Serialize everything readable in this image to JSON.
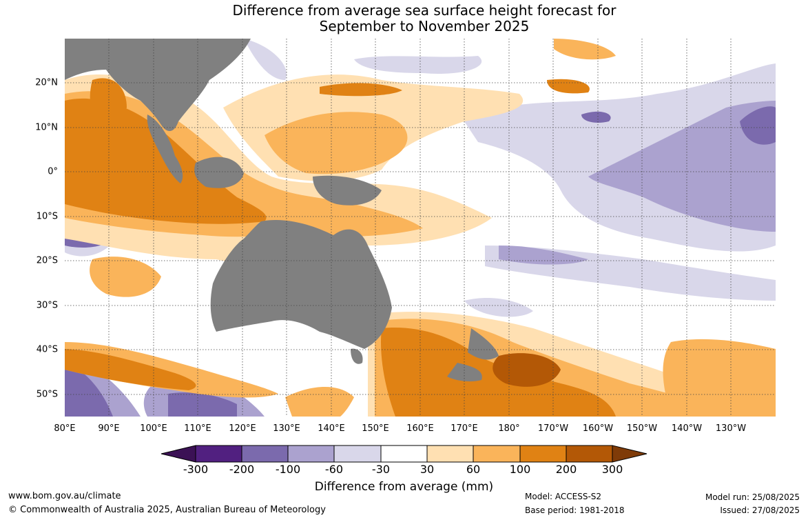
{
  "title": {
    "line1": "Difference from average sea surface height forecast for",
    "line2": "September to November 2025"
  },
  "axes": {
    "lat_labels": [
      "20°N",
      "10°N",
      "0°",
      "10°S",
      "20°S",
      "30°S",
      "40°S",
      "50°S"
    ],
    "lon_labels": [
      "80°E",
      "90°E",
      "100°E",
      "110°E",
      "120°E",
      "130°E",
      "140°E",
      "150°E",
      "160°E",
      "170°E",
      "180°",
      "170°W",
      "160°W",
      "150°W",
      "140°W",
      "130°W"
    ]
  },
  "colorbar": {
    "title": "Difference from average (mm)",
    "ticks": [
      "-300",
      "-200",
      "-100",
      "-60",
      "-30",
      "30",
      "60",
      "100",
      "200",
      "300"
    ],
    "colors": [
      "#3b1155",
      "#512080",
      "#7b6aad",
      "#aba2cf",
      "#d9d7ea",
      "#ffffff",
      "#ffe0b2",
      "#fab45a",
      "#e08214",
      "#b35806",
      "#7f3b08"
    ]
  },
  "colors": {
    "land": "#808080",
    "grid": "#444444"
  },
  "footer": {
    "url": "www.bom.gov.au/climate",
    "copyright": "© Commonwealth of Australia 2025, Australian Bureau of Meteorology",
    "model": "Model: ACCESS-S2",
    "base_period": "Base period: 1981-2018",
    "model_run": "Model run: 25/08/2025",
    "issued": "Issued: 27/08/2025"
  }
}
